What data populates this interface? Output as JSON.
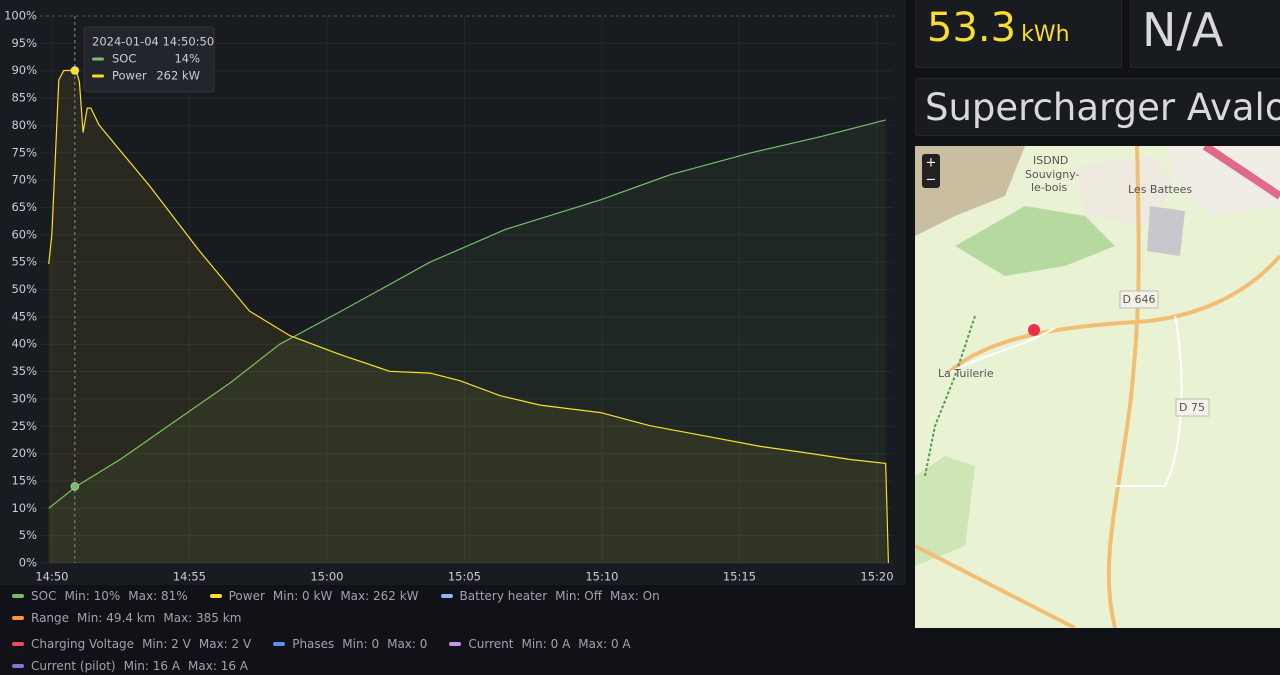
{
  "chart_data": {
    "type": "line",
    "xticks": [
      "14:50",
      "14:55",
      "15:00",
      "15:05",
      "15:10",
      "15:15",
      "15:20"
    ],
    "xlim": [
      "14:49:34",
      "15:20:35"
    ],
    "ylim": [
      0,
      100
    ],
    "yticks": [
      {
        "value": 0,
        "label": "0%"
      },
      {
        "value": 5,
        "label": "5%"
      },
      {
        "value": 10,
        "label": "10%"
      },
      {
        "value": 15,
        "label": "15%"
      },
      {
        "value": 20,
        "label": "20%"
      },
      {
        "value": 25,
        "label": "25%"
      },
      {
        "value": 30,
        "label": "30%"
      },
      {
        "value": 35,
        "label": "35%"
      },
      {
        "value": 40,
        "label": "40%"
      },
      {
        "value": 45,
        "label": "45%"
      },
      {
        "value": 50,
        "label": "50%"
      },
      {
        "value": 55,
        "label": "55%"
      },
      {
        "value": 60,
        "label": "60%"
      },
      {
        "value": 65,
        "label": "65%"
      },
      {
        "value": 70,
        "label": "70%"
      },
      {
        "value": 75,
        "label": "75%"
      },
      {
        "value": 80,
        "label": "80%"
      },
      {
        "value": 85,
        "label": "85%"
      },
      {
        "value": 90,
        "label": "90%"
      },
      {
        "value": 95,
        "label": "95%"
      },
      {
        "value": 100,
        "label": "100%"
      }
    ],
    "y2lim": [
      0,
      291
    ],
    "grid": true,
    "series": [
      {
        "name": "SOC",
        "color": "#73bf69",
        "x": [
          "14:49:53",
          "14:50:53",
          "14:52:30",
          "14:54:30",
          "14:56:30",
          "14:58:17",
          "15:00:30",
          "15:03:45",
          "15:06:30",
          "15:09:57",
          "15:12:30",
          "15:15:25",
          "15:18:00",
          "15:20:19"
        ],
        "values": [
          10,
          14,
          19,
          26,
          33,
          40,
          46,
          55,
          61,
          66.4,
          71,
          75,
          78,
          81
        ]
      },
      {
        "name": "Power",
        "color": "#fade2a",
        "axis": "y2",
        "x": [
          "14:49:53",
          "14:50:00",
          "14:50:15",
          "14:50:26",
          "14:50:53",
          "14:51:00",
          "14:51:08",
          "14:51:17",
          "14:51:25",
          "14:51:43",
          "14:52:27",
          "14:53:32",
          "14:55:22",
          "14:57:11",
          "14:58:39",
          "15:00:28",
          "15:02:17",
          "15:03:45",
          "15:04:50",
          "15:06:18",
          "15:07:45",
          "15:09:57",
          "15:11:46",
          "15:13:36",
          "15:15:47",
          "15:17:15",
          "15:19:04",
          "15:20:19",
          "15:20:25"
        ],
        "values": [
          159,
          175,
          257,
          262,
          262,
          256,
          229,
          242,
          242,
          233,
          220,
          201,
          166,
          134,
          121,
          111,
          102,
          101,
          97,
          89,
          84,
          80,
          73,
          68,
          62,
          59,
          55,
          53,
          0
        ]
      }
    ],
    "tooltip": {
      "time": "2024-01-04 14:50:50",
      "items": [
        {
          "name": "SOC",
          "value": 14,
          "label": "14%"
        },
        {
          "name": "Power",
          "value": 262,
          "label": "262 kW"
        }
      ]
    },
    "legend": [
      {
        "name": "SOC",
        "color": "#73bf69",
        "min": "Min: 10%",
        "max": "Max: 81%"
      },
      {
        "name": "Power",
        "color": "#fade2a",
        "min": "Min: 0 kW",
        "max": "Max: 262 kW"
      },
      {
        "name": "Battery heater",
        "color": "#8ab8ff",
        "min": "Min: Off",
        "max": "Max: On"
      },
      {
        "name": "Range",
        "color": "#ff9830",
        "min": "Min: 49.4 km",
        "max": "Max: 385 km"
      },
      {
        "name": "Charging Voltage",
        "color": "#f2495c",
        "min": "Min: 2 V",
        "max": "Max: 2 V"
      },
      {
        "name": "Phases",
        "color": "#5794f2",
        "min": "Min: 0",
        "max": "Max: 0"
      },
      {
        "name": "Current",
        "color": "#ca95e5",
        "min": "Min: 0 A",
        "max": "Max: 0 A"
      },
      {
        "name": "Current (pilot)",
        "color": "#8f6fd0",
        "min": "Min: 16 A",
        "max": "Max: 16 A"
      }
    ]
  },
  "panels": {
    "energy": {
      "value": "53.3",
      "unit": "kWh"
    },
    "status": {
      "value": "N/A"
    },
    "location": {
      "value": "Supercharger Avalon"
    }
  },
  "map": {
    "zoom_in": "+",
    "zoom_out": "−",
    "labels": [
      "ISDND",
      "Souvigny-",
      "le-bois",
      "Les Battees",
      "D 646",
      "La Tuilerie",
      "D 75"
    ]
  }
}
